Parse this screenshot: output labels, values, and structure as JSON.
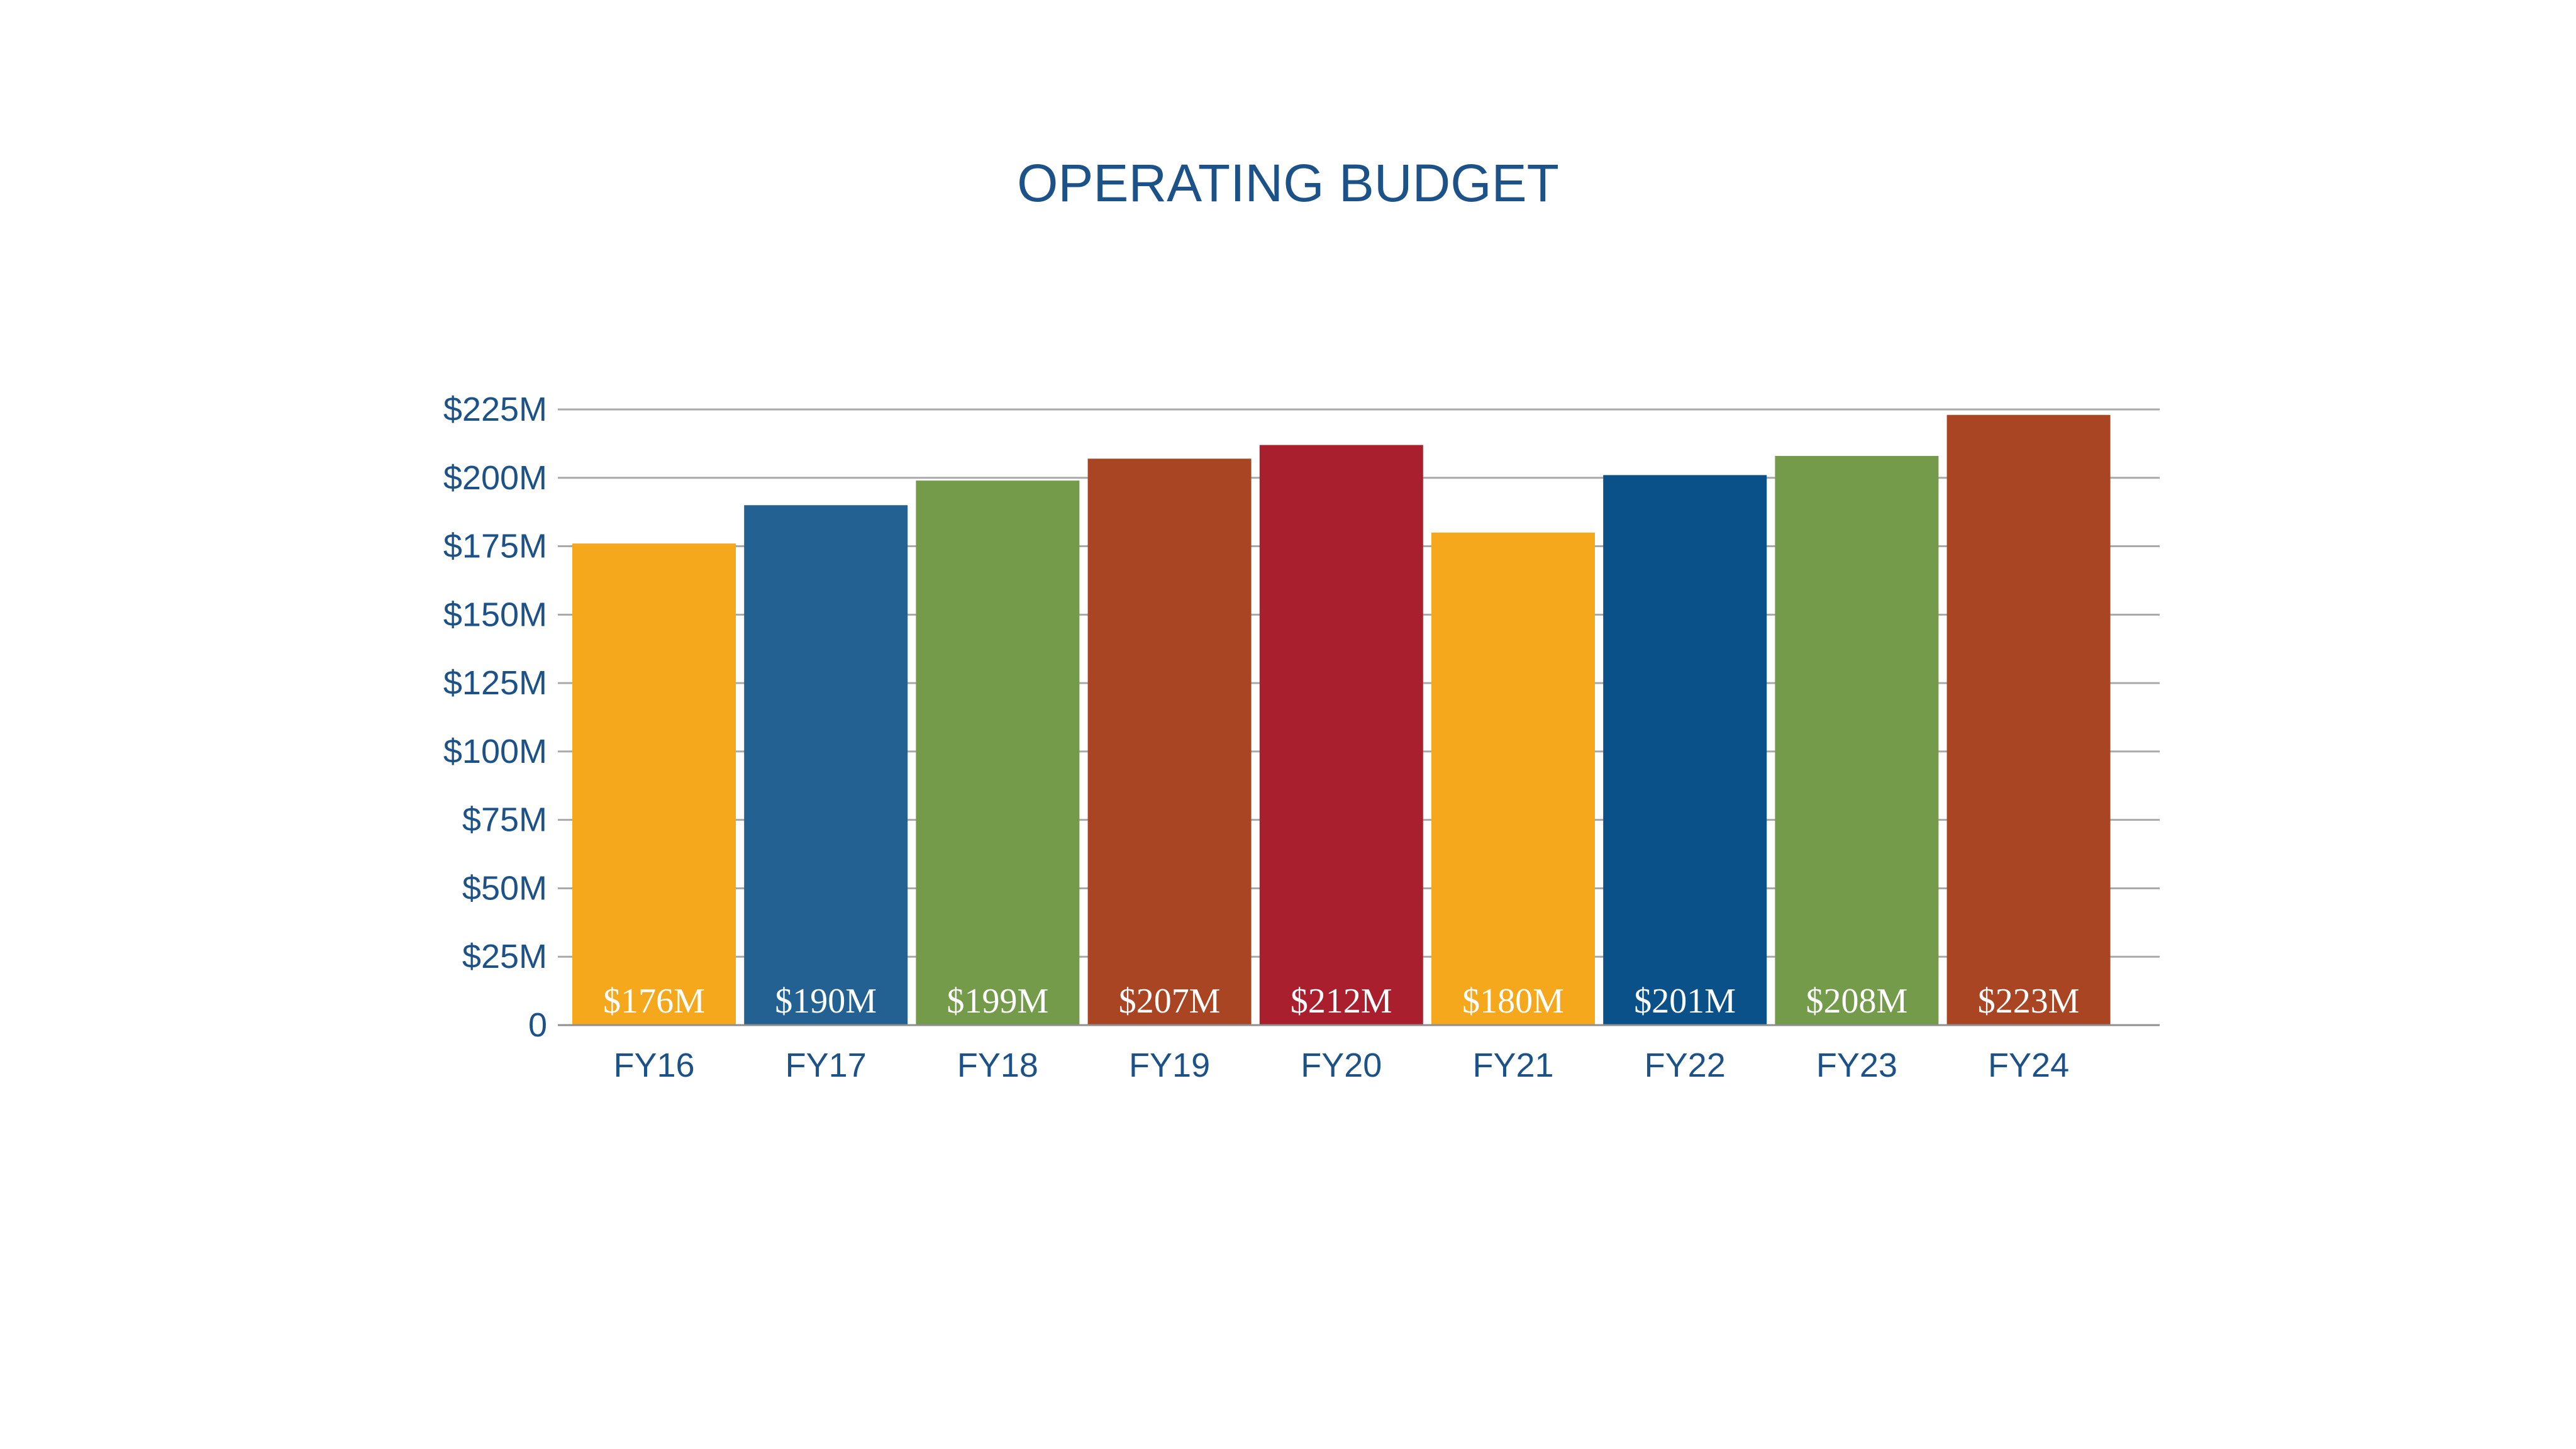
{
  "chart_data": {
    "type": "bar",
    "title": "OPERATING BUDGET",
    "xlabel": "",
    "ylabel": "",
    "ylim": [
      0,
      225
    ],
    "y_ticks": [
      {
        "value": 0,
        "label": "0"
      },
      {
        "value": 25,
        "label": "$25M"
      },
      {
        "value": 50,
        "label": "$50M"
      },
      {
        "value": 75,
        "label": "$75M"
      },
      {
        "value": 100,
        "label": "$100M"
      },
      {
        "value": 125,
        "label": "$125M"
      },
      {
        "value": 150,
        "label": "$150M"
      },
      {
        "value": 175,
        "label": "$175M"
      },
      {
        "value": 200,
        "label": "$200M"
      },
      {
        "value": 225,
        "label": "$225M"
      }
    ],
    "grid": true,
    "legend": "none",
    "categories": [
      "FY16",
      "FY17",
      "FY18",
      "FY19",
      "FY20",
      "FY21",
      "FY22",
      "FY23",
      "FY24"
    ],
    "values": [
      176,
      190,
      199,
      207,
      212,
      180,
      201,
      208,
      223
    ],
    "data_labels": [
      "$176M",
      "$190M",
      "$199M",
      "$207M",
      "$212M",
      "$180M",
      "$201M",
      "$208M",
      "$223M"
    ],
    "bar_colors": [
      "#f5a81c",
      "#236193",
      "#739b4a",
      "#aa4524",
      "#a91f2e",
      "#f5a81c",
      "#0b5189",
      "#739b4a",
      "#aa4524"
    ],
    "text_color": "#1c5287",
    "grid_color": "#a9a9a9"
  }
}
